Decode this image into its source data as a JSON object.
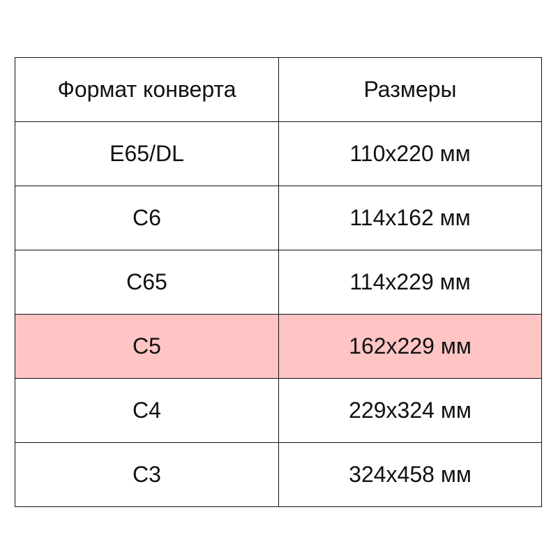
{
  "table": {
    "headers": [
      "Формат конверта",
      "Размеры"
    ],
    "rows": [
      {
        "format": "E65/DL",
        "size": "110x220 мм",
        "highlighted": false
      },
      {
        "format": "C6",
        "size": "114x162 мм",
        "highlighted": false
      },
      {
        "format": "C65",
        "size": "114x229 мм",
        "highlighted": false
      },
      {
        "format": "C5",
        "size": "162x229 мм",
        "highlighted": true
      },
      {
        "format": "C4",
        "size": "229x324 мм",
        "highlighted": false
      },
      {
        "format": "C3",
        "size": "324x458 мм",
        "highlighted": false
      }
    ],
    "highlight_color": "#ffc5c5"
  }
}
